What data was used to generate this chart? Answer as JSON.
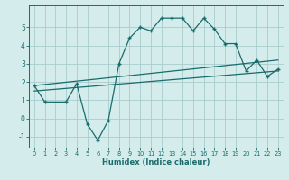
{
  "xlabel": "Humidex (Indice chaleur)",
  "ylabel": "",
  "bg_color": "#d4edec",
  "grid_color": "#aacccc",
  "line_color": "#1a6b6b",
  "xlim": [
    -0.5,
    23.5
  ],
  "ylim": [
    -1.6,
    6.2
  ],
  "yticks": [
    -1,
    0,
    1,
    2,
    3,
    4,
    5
  ],
  "xticks": [
    0,
    1,
    2,
    3,
    4,
    5,
    6,
    7,
    8,
    9,
    10,
    11,
    12,
    13,
    14,
    15,
    16,
    17,
    18,
    19,
    20,
    21,
    22,
    23
  ],
  "series1_x": [
    0,
    1,
    3,
    4,
    5,
    6,
    7,
    8,
    9,
    10,
    11,
    12,
    13,
    14,
    15,
    16,
    17,
    18,
    19,
    20,
    21,
    22,
    23
  ],
  "series1_y": [
    1.8,
    0.9,
    0.9,
    1.9,
    -0.3,
    -1.2,
    -0.1,
    3.0,
    4.4,
    5.0,
    4.8,
    5.5,
    5.5,
    5.5,
    4.8,
    5.5,
    4.9,
    4.1,
    4.1,
    2.6,
    3.2,
    2.3,
    2.7
  ],
  "series2_x": [
    0,
    23
  ],
  "series2_y": [
    1.8,
    3.2
  ],
  "series3_x": [
    0,
    23
  ],
  "series3_y": [
    1.5,
    2.6
  ]
}
